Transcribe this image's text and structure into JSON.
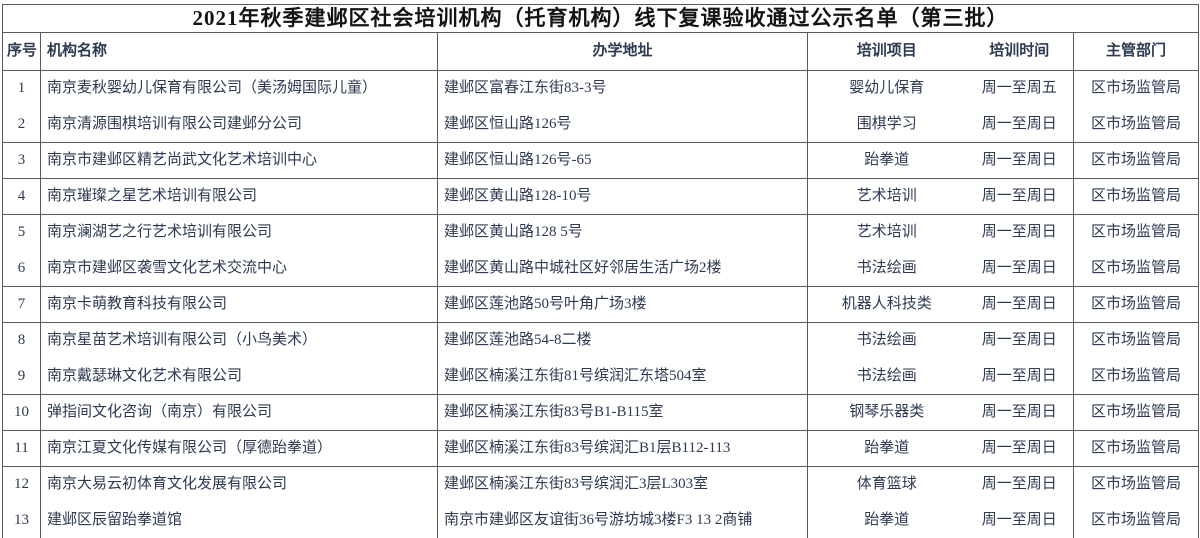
{
  "document": {
    "title": "2021年秋季建邺区社会培训机构（托育机构）线下复课验收通过公示名单（第三批）"
  },
  "table": {
    "headers": {
      "no": "序号",
      "name": "机构名称",
      "address": "办学地址",
      "project": "培训项目",
      "time": "培训时间",
      "department": "主管部门"
    },
    "rows": [
      {
        "no": "1",
        "name": "南京麦秋婴幼儿保育有限公司（美汤姆国际儿童）",
        "address": "建邺区富春江东街83-3号",
        "project": "婴幼儿保育",
        "time": "周一至周五",
        "department": "区市场监管局"
      },
      {
        "no": "2",
        "name": "南京清源围棋培训有限公司建邺分公司",
        "address": "建邺区恒山路126号",
        "project": "围棋学习",
        "time": "周一至周日",
        "department": "区市场监管局"
      },
      {
        "no": "3",
        "name": "南京市建邺区精艺尚武文化艺术培训中心",
        "address": "建邺区恒山路126号-65",
        "project": "跆拳道",
        "time": "周一至周日",
        "department": "区市场监管局"
      },
      {
        "no": "4",
        "name": "南京璀璨之星艺术培训有限公司",
        "address": "建邺区黄山路128-10号",
        "project": "艺术培训",
        "time": "周一至周日",
        "department": "区市场监管局"
      },
      {
        "no": "5",
        "name": "南京澜湖艺之行艺术培训有限公司",
        "address": "建邺区黄山路128 5号",
        "project": "艺术培训",
        "time": "周一至周日",
        "department": "区市场监管局"
      },
      {
        "no": "6",
        "name": "南京市建邺区袭雪文化艺术交流中心",
        "address": "建邺区黄山路中城社区好邻居生活广场2楼",
        "project": "书法绘画",
        "time": "周一至周日",
        "department": "区市场监管局"
      },
      {
        "no": "7",
        "name": "南京卡萌教育科技有限公司",
        "address": "建邺区莲池路50号叶角广场3楼",
        "project": "机器人科技类",
        "time": "周一至周日",
        "department": "区市场监管局"
      },
      {
        "no": "8",
        "name": "南京星苗艺术培训有限公司（小鸟美术）",
        "address": "建邺区莲池路54-8二楼",
        "project": "书法绘画",
        "time": "周一至周日",
        "department": "区市场监管局"
      },
      {
        "no": "9",
        "name": "南京戴瑟琳文化艺术有限公司",
        "address": "建邺区楠溪江东街81号缤润汇东塔504室",
        "project": "书法绘画",
        "time": "周一至周日",
        "department": "区市场监管局"
      },
      {
        "no": "10",
        "name": "弹指间文化咨询（南京）有限公司",
        "address": "建邺区楠溪江东街83号B1-B115室",
        "project": "钢琴乐器类",
        "time": "周一至周日",
        "department": "区市场监管局"
      },
      {
        "no": "11",
        "name": "南京江夏文化传媒有限公司（厚德跆拳道）",
        "address": "建邺区楠溪江东街83号缤润汇B1层B112-113",
        "project": "跆拳道",
        "time": "周一至周日",
        "department": "区市场监管局"
      },
      {
        "no": "12",
        "name": "南京大易云初体育文化发展有限公司",
        "address": "建邺区楠溪江东街83号缤润汇3层L303室",
        "project": "体育篮球",
        "time": "周一至周日",
        "department": "区市场监管局"
      },
      {
        "no": "13",
        "name": "建邺区辰留跆拳道馆",
        "address": "南京市建邺区友谊街36号游坊城3楼F3 13 2商铺",
        "project": "跆拳道",
        "time": "周一至周日",
        "department": "区市场监管局"
      }
    ],
    "rows_without_bottom_border": [
      "1",
      "5",
      "8",
      "12"
    ]
  },
  "colors": {
    "text": "#2e3a52",
    "title_text": "#141414",
    "border": "#5a5a5a",
    "background": "#ffffff"
  }
}
